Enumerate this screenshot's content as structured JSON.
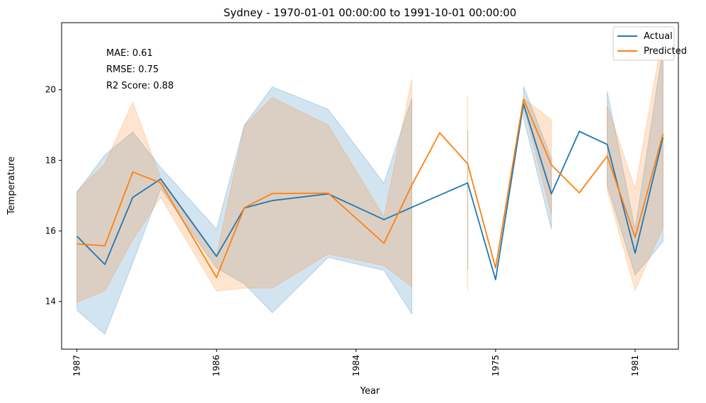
{
  "chart_data": {
    "type": "line",
    "title": "Sydney - 1970-01-01 00:00:00 to 1991-10-01 00:00:00",
    "xlabel": "Year",
    "ylabel": "Temperature",
    "x_ticks": [
      {
        "label": "1987",
        "index": 0
      },
      {
        "label": "1986",
        "index": 5
      },
      {
        "label": "1984",
        "index": 10
      },
      {
        "label": "1975",
        "index": 15
      },
      {
        "label": "1981",
        "index": 20
      }
    ],
    "x_range": [
      -0.55,
      21.55
    ],
    "ylim": [
      12.65,
      21.9
    ],
    "yticks": [
      14,
      16,
      18,
      20
    ],
    "legend": {
      "position": "top-right"
    },
    "annotations": [
      "MAE: 0.61",
      "RMSE: 0.75",
      "R2 Score: 0.88"
    ],
    "series": [
      {
        "name": "Actual",
        "color": "#1f77b4",
        "segments": [
          {
            "x": [
              0,
              1,
              2,
              3,
              5,
              6,
              7,
              9,
              11,
              12
            ],
            "y": [
              15.85,
              15.05,
              16.95,
              17.47,
              15.28,
              16.65,
              16.86,
              17.05,
              16.32,
              16.67
            ],
            "lower": [
              13.75,
              13.07,
              15.1,
              17.2,
              14.95,
              14.5,
              13.68,
              15.25,
              14.88,
              13.65
            ],
            "upper": [
              17.1,
              18.15,
              18.8,
              17.8,
              16.05,
              19.0,
              20.08,
              19.45,
              17.35,
              19.75
            ]
          },
          {
            "x": [
              14
            ],
            "y": [
              17.36
            ],
            "lower": [
              14.9
            ],
            "upper": [
              18.85
            ]
          },
          {
            "x": [
              15
            ],
            "y": [
              14.62
            ],
            "lower": [
              14.62
            ],
            "upper": [
              14.62
            ]
          },
          {
            "x": [
              16,
              17
            ],
            "y": [
              19.6,
              17.05
            ],
            "lower": [
              19.2,
              16.05
            ],
            "upper": [
              20.1,
              18.05
            ]
          },
          {
            "x": [
              18
            ],
            "y": [
              18.82
            ],
            "lower": [
              18.82
            ],
            "upper": [
              18.82
            ]
          },
          {
            "x": [
              19,
              20,
              21
            ],
            "y": [
              18.45,
              15.37,
              18.65
            ],
            "lower": [
              17.3,
              14.75,
              15.7
            ],
            "upper": [
              19.95,
              16.05,
              21.2
            ]
          }
        ]
      },
      {
        "name": "Predicted",
        "color": "#ff7f0e",
        "segments": [
          {
            "x": [
              0,
              1,
              2,
              3,
              5,
              6,
              7,
              9,
              11,
              12
            ],
            "y": [
              15.63,
              15.58,
              17.67,
              17.36,
              14.68,
              16.66,
              17.06,
              17.07,
              15.65,
              17.3
            ],
            "lower": [
              13.98,
              14.3,
              15.75,
              16.95,
              14.3,
              14.38,
              14.38,
              15.35,
              15.02,
              14.42
            ],
            "upper": [
              17.13,
              17.9,
              19.65,
              17.5,
              15.3,
              18.98,
              19.78,
              19.0,
              16.4,
              20.3
            ]
          },
          {
            "x": [
              13
            ],
            "y": [
              18.78
            ],
            "lower": [
              18.78
            ],
            "upper": [
              18.78
            ]
          },
          {
            "x": [
              14
            ],
            "y": [
              17.9
            ],
            "lower": [
              14.3
            ],
            "upper": [
              19.82
            ]
          },
          {
            "x": [
              15
            ],
            "y": [
              14.95
            ],
            "lower": [
              14.95
            ],
            "upper": [
              14.95
            ]
          },
          {
            "x": [
              16,
              17
            ],
            "y": [
              19.73,
              17.87
            ],
            "lower": [
              19.55,
              16.45
            ],
            "upper": [
              19.75,
              19.15
            ]
          },
          {
            "x": [
              18
            ],
            "y": [
              17.08
            ],
            "lower": [
              17.08
            ],
            "upper": [
              17.08
            ]
          },
          {
            "x": [
              19,
              20,
              21
            ],
            "y": [
              18.12,
              15.82,
              18.75
            ],
            "lower": [
              17.15,
              14.32,
              16.1
            ],
            "upper": [
              19.55,
              17.2,
              21.6
            ]
          }
        ]
      }
    ]
  }
}
